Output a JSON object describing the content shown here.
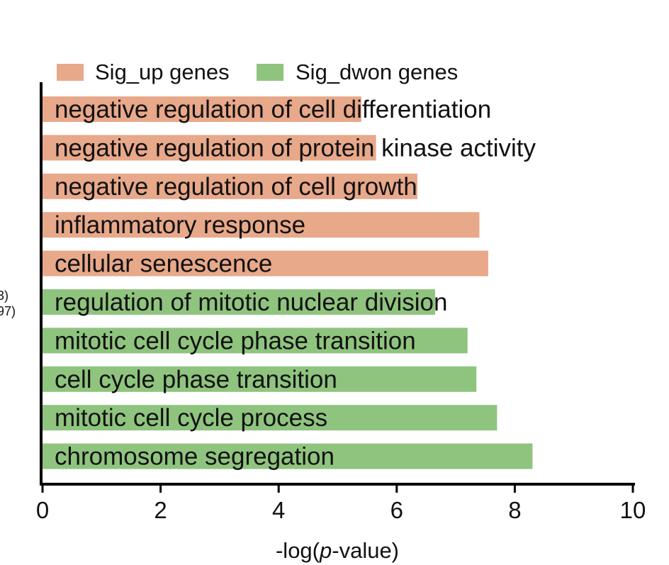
{
  "chart_data": {
    "type": "bar",
    "orientation": "horizontal",
    "title": "",
    "xlabel": "-log(p-value)",
    "xlabel_parts": [
      "-log(",
      "p",
      "-value)"
    ],
    "ylabel": "",
    "xlim": [
      0,
      10
    ],
    "xticks": [
      0,
      2,
      4,
      6,
      8,
      10
    ],
    "legend": {
      "placement": "top",
      "entries": [
        {
          "label": "Sig_up genes",
          "color": "#E8A88A"
        },
        {
          "label": "Sig_dwon genes",
          "color": "#8FC47E"
        }
      ]
    },
    "bars": [
      {
        "label": "negative regulation of cell differentiation",
        "value": 5.4,
        "series": "Sig_up genes",
        "color": "#E8A88A"
      },
      {
        "label": "negative regulation of protein kinase activity",
        "value": 5.65,
        "series": "Sig_up genes",
        "color": "#E8A88A"
      },
      {
        "label": "negative regulation of cell growth",
        "value": 6.35,
        "series": "Sig_up genes",
        "color": "#E8A88A"
      },
      {
        "label": "inflammatory response",
        "value": 7.4,
        "series": "Sig_up genes",
        "color": "#E8A88A"
      },
      {
        "label": "cellular senescence",
        "value": 7.55,
        "series": "Sig_up genes",
        "color": "#E8A88A"
      },
      {
        "label": "regulation of mitotic nuclear division",
        "value": 6.65,
        "series": "Sig_dwon genes",
        "color": "#8FC47E"
      },
      {
        "label": "mitotic cell cycle phase transition",
        "value": 7.2,
        "series": "Sig_dwon genes",
        "color": "#8FC47E"
      },
      {
        "label": "cell cycle phase transition",
        "value": 7.35,
        "series": "Sig_dwon genes",
        "color": "#8FC47E"
      },
      {
        "label": "mitotic cell cycle process",
        "value": 7.7,
        "series": "Sig_dwon genes",
        "color": "#8FC47E"
      },
      {
        "label": "chromosome segregation",
        "value": 8.3,
        "series": "Sig_dwon genes",
        "color": "#8FC47E"
      }
    ]
  },
  "cropped_side_text": [
    "3)",
    "97)"
  ]
}
